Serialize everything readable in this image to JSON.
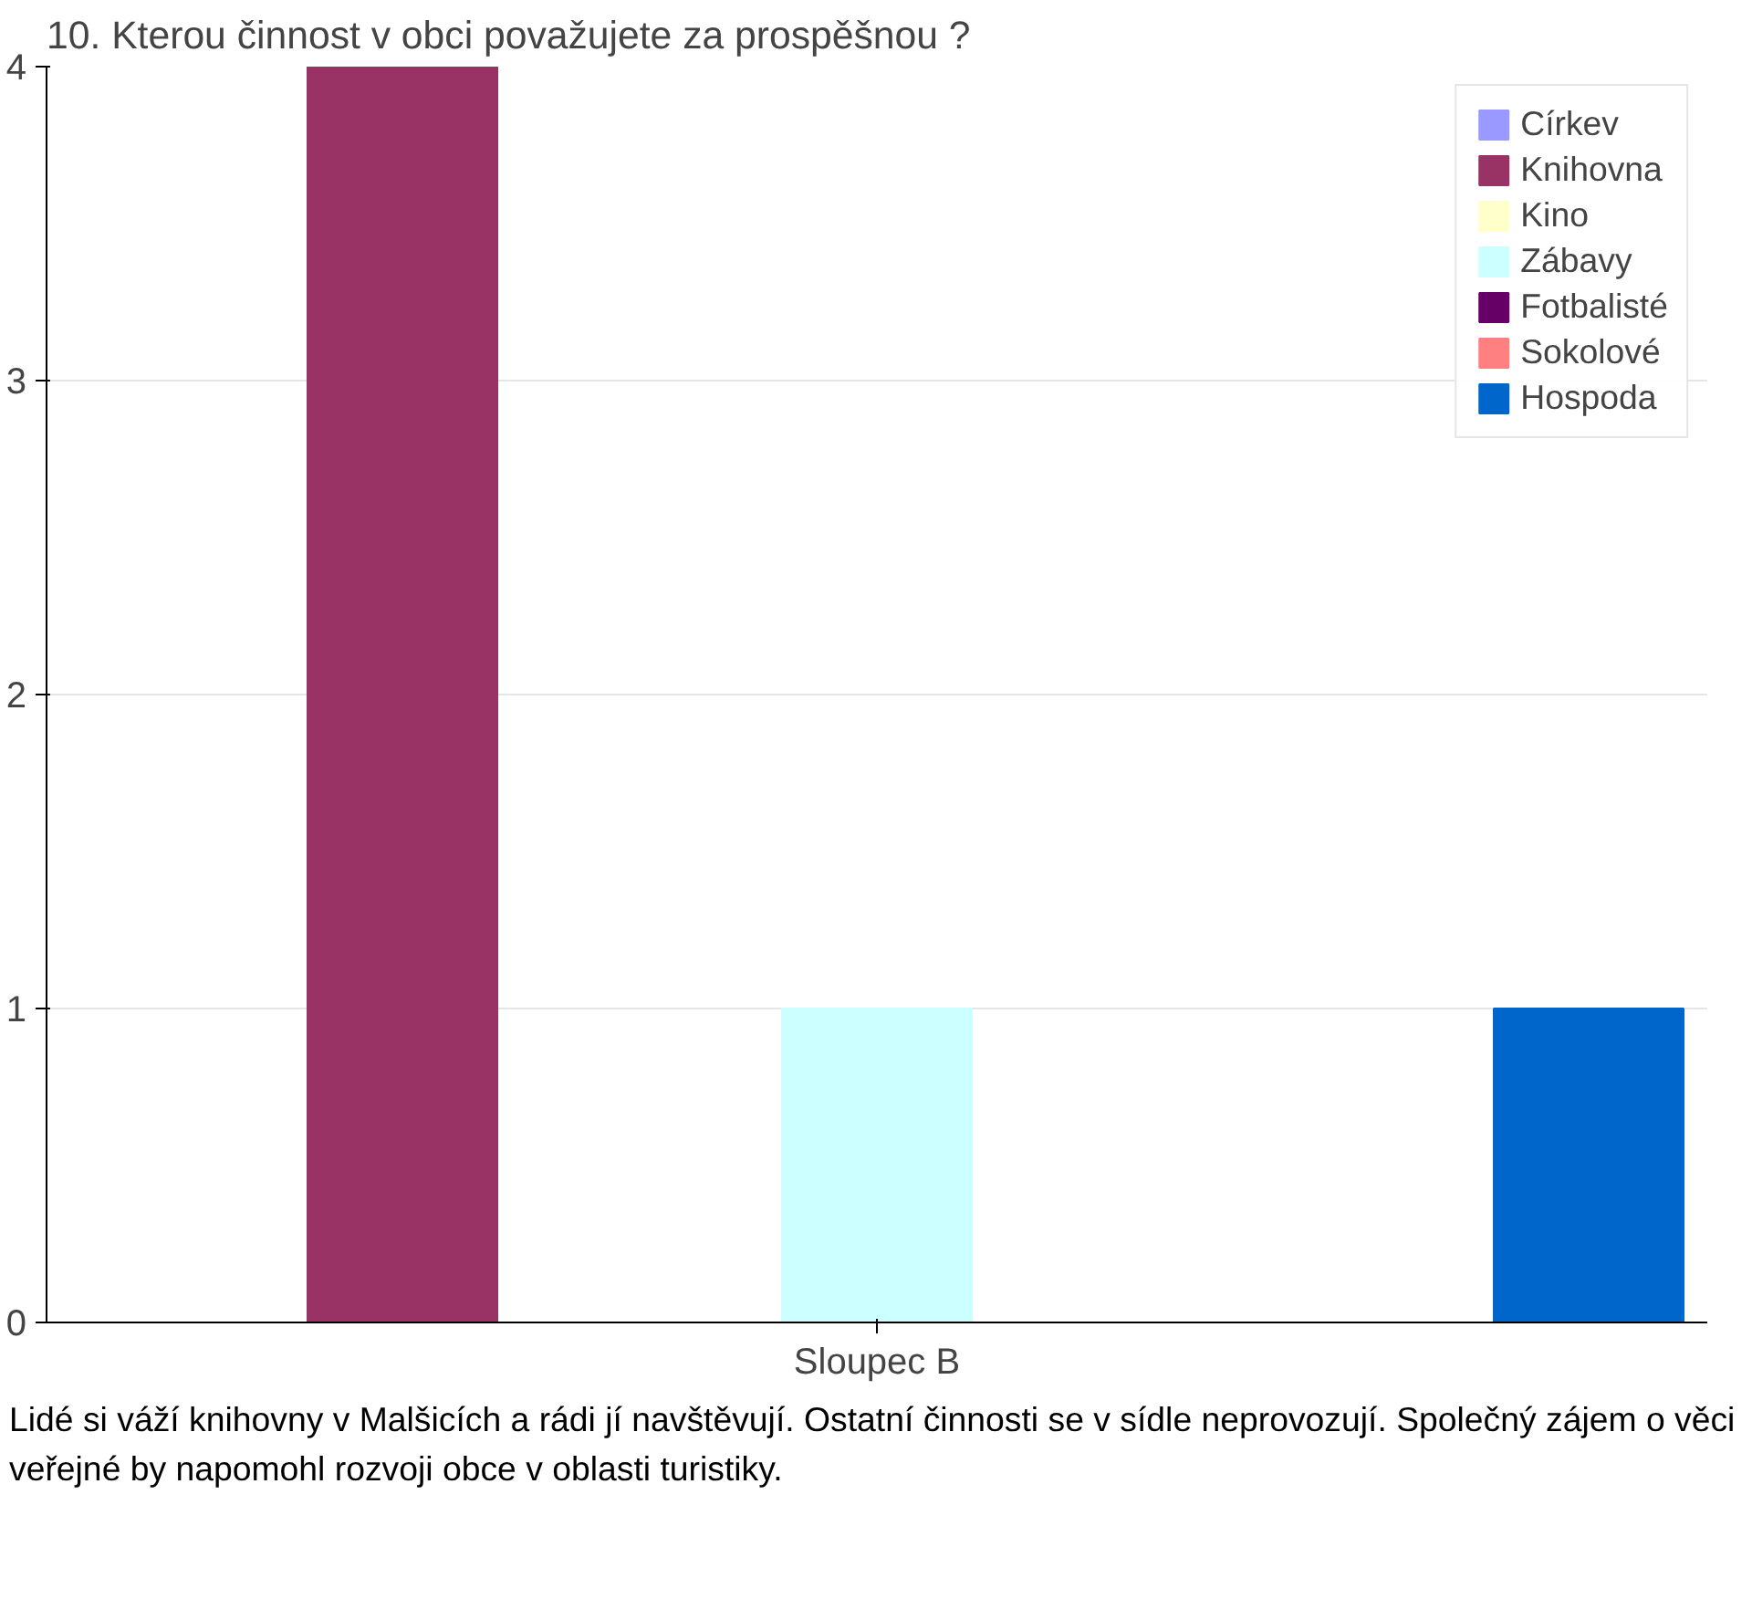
{
  "chart_data": {
    "type": "bar",
    "title": "10. Kterou činnost v obci považujete za prospěšnou ?",
    "categories": [
      "Sloupec B"
    ],
    "series": [
      {
        "name": "Církev",
        "color": "#9999ff",
        "values": [
          0
        ]
      },
      {
        "name": "Knihovna",
        "color": "#993366",
        "values": [
          4
        ]
      },
      {
        "name": "Kino",
        "color": "#ffffcc",
        "values": [
          0
        ]
      },
      {
        "name": "Zábavy",
        "color": "#ccffff",
        "values": [
          1
        ]
      },
      {
        "name": "Fotbalisté",
        "color": "#660066",
        "values": [
          0
        ]
      },
      {
        "name": "Sokolové",
        "color": "#ff8080",
        "values": [
          0
        ]
      },
      {
        "name": "Hospoda",
        "color": "#0066cc",
        "values": [
          1
        ]
      }
    ],
    "ylim": [
      0,
      4
    ],
    "yticks": [
      0,
      1,
      2,
      3,
      4
    ],
    "grid": "y",
    "legend": "top right",
    "annotations": [
      "Lidé si váží knihovny v Malšicích a rádi jí navštěvují. Ostatní činnosti se v sídle neprovozují. Společný zájem o věci veřejné by napomohl rozvoji obce v oblasti turistiky."
    ]
  }
}
